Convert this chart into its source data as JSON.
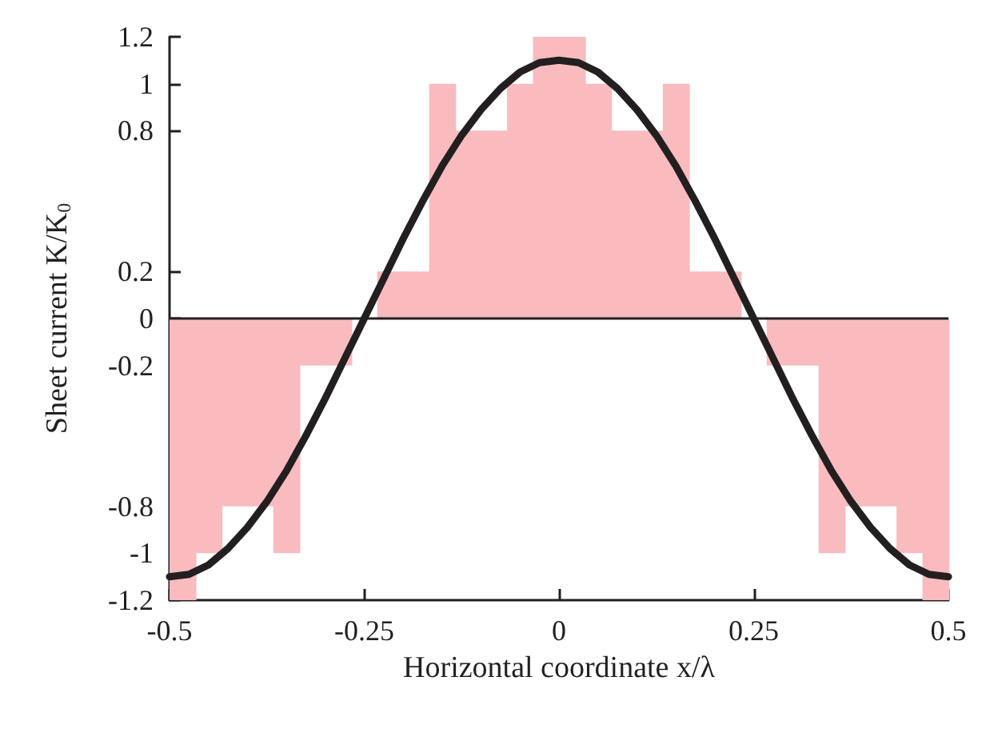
{
  "chart_data": {
    "type": "histogram",
    "xlabel": "Horizontal coordinate x/λ",
    "ylabel": "Sheet current K/K$_{0}$",
    "bins": [
      -0.5,
      -0.4667,
      -0.4333,
      -0.4,
      -0.3667,
      -0.3333,
      -0.3,
      -0.2667,
      -0.2333,
      -0.2,
      -0.1667,
      -0.1333,
      -0.1,
      -0.0667,
      -0.0333,
      0,
      0.0333,
      0.0667,
      0.1,
      0.1333,
      0.1667,
      0.2,
      0.2333,
      0.2667,
      0.3,
      0.3333,
      0.3667,
      0.4,
      0.4333,
      0.4667,
      0.5
    ],
    "values": [
      -1.2,
      -1,
      -0.8,
      -0.8,
      -1,
      -0.2,
      -0.2,
      0,
      0.2,
      0.2,
      1,
      0.8,
      0.8,
      1,
      1.2,
      1.2,
      1,
      0.8,
      0.8,
      1,
      0.2,
      0.2,
      0,
      -0.2,
      -0.2,
      -1,
      -0.8,
      -0.8,
      -1,
      -1.2
    ],
    "color": "#f9bbbd",
    "series": [
      {
        "type": "line",
        "color": "#231f20",
        "x": [
          -0.5,
          -0.475,
          -0.45,
          -0.425,
          -0.4,
          -0.375,
          -0.35,
          -0.325,
          -0.3,
          -0.275,
          -0.25,
          -0.225,
          -0.2,
          -0.175,
          -0.15,
          -0.125,
          -0.1,
          -0.075,
          -0.05,
          -0.025,
          0,
          0.025,
          0.05,
          0.075,
          0.1,
          0.125,
          0.15,
          0.175,
          0.2,
          0.225,
          0.25,
          0.275,
          0.3,
          0.325,
          0.35,
          0.375,
          0.4,
          0.425,
          0.45,
          0.475,
          0.5
        ],
        "values": [
          -1.1,
          -1.09,
          -1.05,
          -0.98,
          -0.89,
          -0.78,
          -0.65,
          -0.5,
          -0.34,
          -0.17,
          0,
          0.17,
          0.34,
          0.5,
          0.65,
          0.78,
          0.89,
          0.98,
          1.05,
          1.09,
          1.1,
          1.09,
          1.05,
          0.98,
          0.89,
          0.78,
          0.65,
          0.5,
          0.34,
          0.17,
          0,
          -0.17,
          -0.34,
          -0.5,
          -0.65,
          -0.78,
          -0.89,
          -0.98,
          -1.05,
          -1.09,
          -1.1
        ]
      }
    ],
    "ref_lines": [
      {
        "axis": "y",
        "value": 0,
        "color": "#231f20"
      }
    ],
    "xlim": [
      -0.5,
      0.5
    ],
    "xticks": [
      -0.5,
      -0.25,
      0,
      0.25,
      0.5
    ],
    "ylim": [
      -1.2,
      1.2
    ],
    "yticks": [
      -1.2,
      -1,
      -0.8,
      -0.2,
      0,
      0.2,
      0.8,
      1,
      1.2
    ],
    "grid": false,
    "marker": "none",
    "line_style": "solid"
  }
}
